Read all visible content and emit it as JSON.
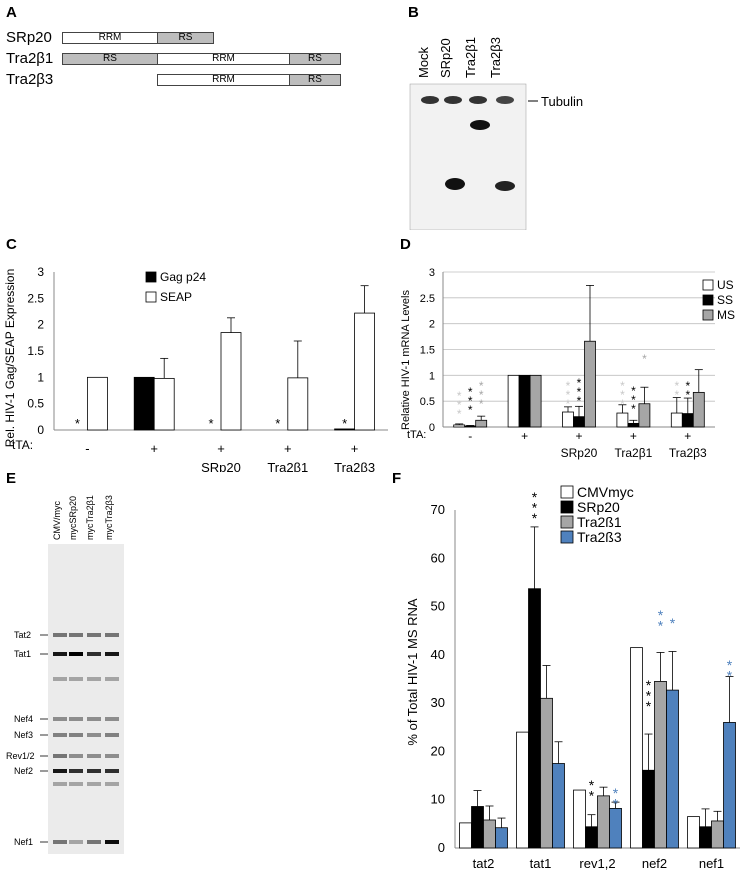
{
  "panels": {
    "A": "A",
    "B": "B",
    "C": "C",
    "D": "D",
    "E": "E",
    "F": "F"
  },
  "panelA": {
    "proteins": [
      {
        "name": "SRp20",
        "domains": [
          "RRM",
          "RS"
        ]
      },
      {
        "name": "Tra2β1",
        "domains": [
          "RS",
          "RRM",
          "RS"
        ]
      },
      {
        "name": "Tra2β3",
        "domains": [
          "RRM",
          "RS"
        ]
      }
    ]
  },
  "panelB": {
    "lanes": [
      "Mock",
      "SRp20",
      "Tra2β1",
      "Tra2β3"
    ],
    "band_label": "Tubulin"
  },
  "panelE": {
    "lanes": [
      "CMV/myc",
      "mycSRp20",
      "mycTra2β1",
      "mycTra2β3"
    ],
    "band_labels": [
      "Tat2",
      "Tat1",
      "Nef4",
      "Nef3",
      "Rev1/2",
      "Nef2",
      "Nef1"
    ]
  },
  "chart_data": [
    {
      "panel": "C",
      "type": "bar",
      "ylabel": "Rel. HIV-1 Gag/SEAP Expression",
      "ylim": [
        0,
        3
      ],
      "yticks": [
        "0",
        "0.5",
        "1",
        "1.5",
        "2",
        "2.5",
        "3"
      ],
      "tta_label": "tTA:",
      "tta": [
        "-",
        "+",
        "+",
        "+",
        "+"
      ],
      "categories": [
        "",
        "",
        "SRp20",
        "Tra2β1",
        "Tra2β3"
      ],
      "series": [
        {
          "name": "Gag p24",
          "color": "#000000",
          "values": [
            0,
            1,
            0,
            0,
            0.02
          ],
          "errors": [
            0,
            0,
            0,
            0,
            0
          ]
        },
        {
          "name": "SEAP",
          "color": "#ffffff",
          "values": [
            1,
            0.98,
            1.85,
            0.99,
            2.22
          ],
          "errors": [
            0,
            0.38,
            0.28,
            0.7,
            0.52
          ]
        }
      ],
      "annotations": [
        "*",
        "*",
        "*",
        "*"
      ],
      "legend": "top-center"
    },
    {
      "panel": "D",
      "type": "bar",
      "ylabel": "Relative HIV-1 mRNA Levels",
      "ylim": [
        0,
        3
      ],
      "yticks": [
        "0",
        "0.5",
        "1",
        "1.5",
        "2",
        "2.5",
        "3"
      ],
      "tta_label": "tTA:",
      "tta": [
        "-",
        "+",
        "+",
        "+",
        "+"
      ],
      "categories": [
        "",
        "",
        "SRp20",
        "Tra2β1",
        "Tra2β3"
      ],
      "series": [
        {
          "name": "US",
          "color": "#ffffff",
          "values": [
            0.04,
            1,
            0.29,
            0.27,
            0.27
          ],
          "errors": [
            0.02,
            0,
            0.1,
            0.16,
            0.3
          ]
        },
        {
          "name": "SS",
          "color": "#000000",
          "values": [
            0.02,
            1,
            0.2,
            0.07,
            0.26
          ],
          "errors": [
            0.01,
            0,
            0.2,
            0.06,
            0.3
          ]
        },
        {
          "name": "MS",
          "color": "#a6a6a6",
          "values": [
            0.13,
            1,
            1.66,
            0.45,
            0.67
          ],
          "errors": [
            0.08,
            0,
            1.08,
            0.32,
            0.44
          ]
        }
      ],
      "annotations": [
        "***",
        "***",
        "***",
        "***",
        "*",
        "**",
        "**",
        "***"
      ],
      "legend": "top-right"
    },
    {
      "panel": "F",
      "type": "bar",
      "ylabel": "% of Total HIV-1 MS RNA",
      "ylim": [
        0,
        70
      ],
      "yticks": [
        "0",
        "10",
        "20",
        "30",
        "40",
        "50",
        "60",
        "70"
      ],
      "categories": [
        "tat2",
        "tat1",
        "rev1,2",
        "nef2",
        "nef1"
      ],
      "series": [
        {
          "name": "CMVmyc",
          "color": "#ffffff",
          "values": [
            5.2,
            24,
            12,
            41.5,
            6.5
          ],
          "errors": [
            0,
            0,
            0,
            0,
            0
          ]
        },
        {
          "name": "SRp20",
          "color": "#000000",
          "values": [
            8.6,
            53.7,
            4.4,
            16.1,
            4.4
          ],
          "errors": [
            3.3,
            12.8,
            2.5,
            7.5,
            3.7
          ]
        },
        {
          "name": "Tra2ß1",
          "color": "#a6a6a6",
          "values": [
            5.8,
            31,
            10.8,
            34.5,
            5.6
          ],
          "errors": [
            2.9,
            6.8,
            1.8,
            6,
            2
          ]
        },
        {
          "name": "Tra2ß3",
          "color": "#4f81bd",
          "values": [
            4.2,
            17.5,
            8.2,
            32.7,
            26
          ],
          "errors": [
            2,
            4.5,
            1.3,
            8,
            9.5
          ]
        }
      ],
      "annotations": [
        "***",
        "**",
        "**",
        "***",
        "**",
        "*",
        "**"
      ],
      "legend": "top-center"
    }
  ]
}
